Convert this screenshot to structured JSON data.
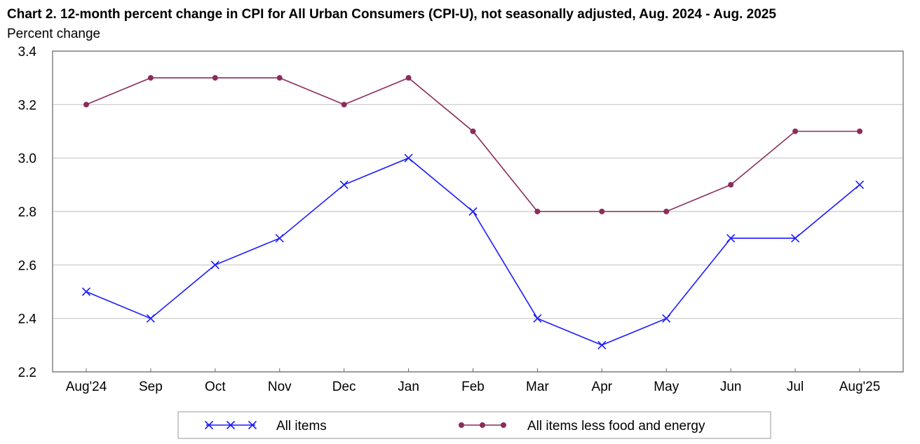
{
  "chart_data": {
    "type": "line",
    "title": "Chart 2. 12-month percent change in CPI for All Urban Consumers (CPI-U), not seasonally adjusted, Aug. 2024 - Aug. 2025",
    "ylabel": "Percent change",
    "xlabel": "",
    "categories": [
      "Aug'24",
      "Sep",
      "Oct",
      "Nov",
      "Dec",
      "Jan",
      "Feb",
      "Mar",
      "Apr",
      "May",
      "Jun",
      "Jul",
      "Aug'25"
    ],
    "ylim": [
      2.2,
      3.4
    ],
    "yticks": [
      "2.2",
      "2.4",
      "2.6",
      "2.8",
      "3.0",
      "3.2",
      "3.4"
    ],
    "grid": true,
    "legend_position": "bottom",
    "series": [
      {
        "name": "All items",
        "color": "#1a1aff",
        "marker": "x",
        "values": [
          2.5,
          2.4,
          2.6,
          2.7,
          2.9,
          3.0,
          2.8,
          2.4,
          2.3,
          2.4,
          2.7,
          2.7,
          2.9
        ]
      },
      {
        "name": "All items less food and energy",
        "color": "#8b2c5c",
        "marker": "circle",
        "values": [
          3.2,
          3.3,
          3.3,
          3.3,
          3.2,
          3.3,
          3.1,
          2.8,
          2.8,
          2.8,
          2.9,
          3.1,
          3.1
        ]
      }
    ]
  }
}
